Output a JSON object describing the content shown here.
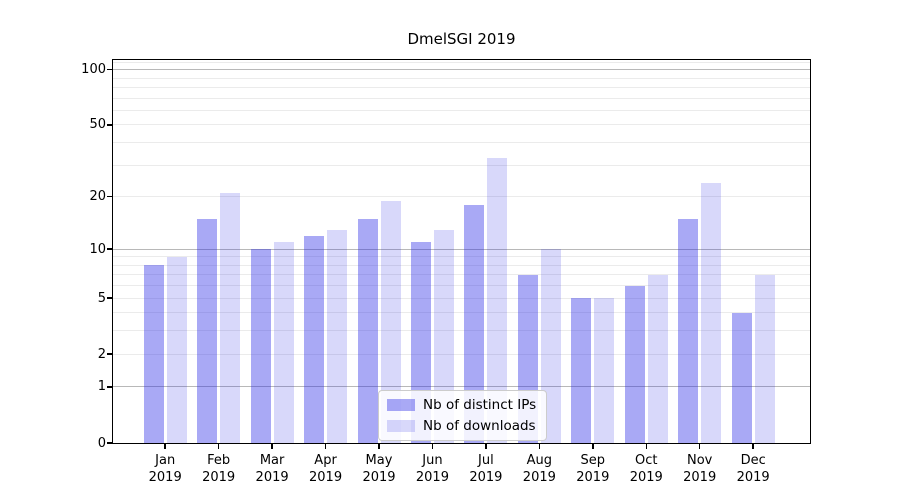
{
  "chart_data": {
    "type": "bar",
    "title": "DmelSGI 2019",
    "categories": [
      "Jan",
      "Feb",
      "Mar",
      "Apr",
      "May",
      "Jun",
      "Jul",
      "Aug",
      "Sep",
      "Oct",
      "Nov",
      "Dec"
    ],
    "category_year": "2019",
    "series": [
      {
        "name": "Nb of distinct IPs",
        "color": "rgba(40,40,230,0.40)",
        "values": [
          8,
          15,
          10,
          12,
          15,
          11,
          18,
          7,
          5,
          6,
          15,
          4
        ]
      },
      {
        "name": "Nb of downloads",
        "color": "rgba(40,40,230,0.18)",
        "values": [
          9,
          21,
          11,
          13,
          19,
          13,
          33,
          10,
          5,
          7,
          24,
          7
        ]
      }
    ],
    "xlabel": "",
    "ylabel": "",
    "yscale": "log1p",
    "ylim": [
      0,
      114
    ],
    "y_ticks": [
      100,
      50,
      20,
      10,
      5,
      2,
      1,
      0
    ],
    "y_major_gridlines": [
      1,
      10,
      100
    ],
    "y_minor_gridlines": [
      2,
      3,
      4,
      5,
      6,
      7,
      8,
      9,
      20,
      30,
      40,
      50,
      60,
      70,
      80,
      90,
      110
    ],
    "grid": true,
    "legend_position": "lower center"
  },
  "colors": {
    "bar_dark": "rgba(40,40,230,0.40)",
    "bar_light": "rgba(40,40,230,0.18)",
    "grid_major": "#b8b8b8",
    "grid_minor": "#ebebeb",
    "frame": "#000000",
    "background": "#ffffff"
  }
}
